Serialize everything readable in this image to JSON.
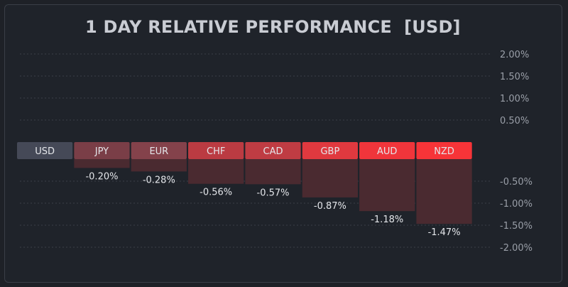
{
  "chart_data": {
    "type": "bar",
    "title": "1 DAY RELATIVE PERFORMANCE  [USD]",
    "categories": [
      "USD",
      "JPY",
      "EUR",
      "CHF",
      "CAD",
      "GBP",
      "AUD",
      "NZD"
    ],
    "values": [
      0,
      -0.2,
      -0.28,
      -0.56,
      -0.57,
      -0.87,
      -1.18,
      -1.47
    ],
    "value_labels": [
      "",
      "-0.20%",
      "-0.28%",
      "-0.56%",
      "-0.57%",
      "-0.87%",
      "-1.18%",
      "-1.47%"
    ],
    "label_colors": [
      "#454957",
      "#7a3e47",
      "#84424b",
      "#bb3b42",
      "#bf3c43",
      "#e0393f",
      "#f0353b",
      "#f73438"
    ],
    "bar_color": "#4a2a30",
    "ylim": [
      -2.0,
      2.0
    ],
    "y_ticks_positive": [
      "2.00%",
      "1.50%",
      "1.00%",
      "0.50%"
    ],
    "y_ticks_negative": [
      "-0.50%",
      "-1.00%",
      "-1.50%",
      "-2.00%"
    ],
    "grid": true,
    "legend": "none"
  }
}
